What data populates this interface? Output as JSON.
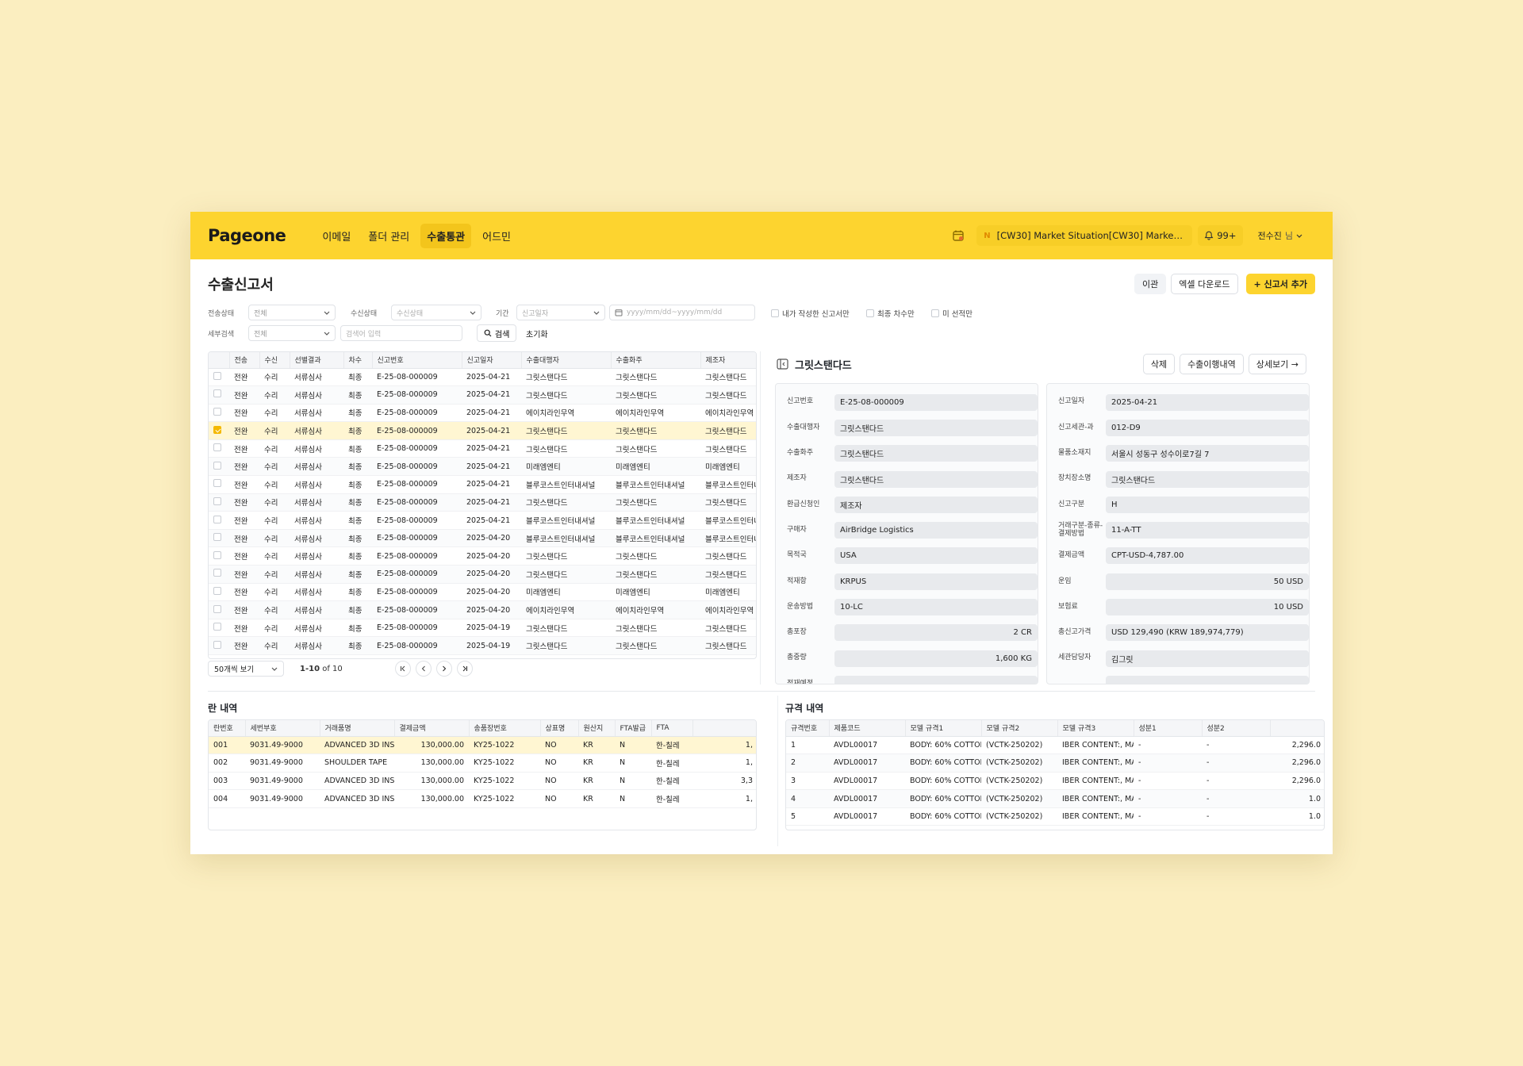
{
  "app": {
    "logo": "Pageone"
  },
  "nav": [
    "이메일",
    "폴더 관리",
    "수출통관",
    "어드민"
  ],
  "nav_active": 2,
  "topbar": {
    "notice_badge": "N",
    "notice_text": "[CW30] Market Situation[CW30] Market Sit...",
    "bell_count": "99+",
    "user_name": "전수진",
    "user_suffix": "님"
  },
  "page": {
    "title": "수출신고서"
  },
  "actions": {
    "transfer": "이관",
    "excel": "엑셀 다운로드",
    "add": "+ 신고서 추가"
  },
  "filters": {
    "send_status_label": "전송상태",
    "send_status_value": "전체",
    "recv_status_label": "수신상태",
    "recv_status_placeholder": "수신상태",
    "period_label": "기간",
    "period_type_placeholder": "신고일자",
    "date_placeholder": "yyyy/mm/dd~yyyy/mm/dd",
    "cb_mine": "내가 작성한 신고서만",
    "cb_final": "최종 차수만",
    "cb_unselected": "미 선적만",
    "detail_label": "세부검색",
    "detail_value": "전체",
    "keyword_placeholder": "검색어 입력",
    "search_btn": "검색",
    "reset_btn": "초기화"
  },
  "list": {
    "columns": [
      "",
      "전송",
      "수신",
      "선별결과",
      "차수",
      "신고번호",
      "신고일자",
      "수출대행자",
      "수출화주",
      "제조자"
    ],
    "selected_row": 3,
    "rows": [
      [
        "전완",
        "수리",
        "서류심사",
        "최종",
        "E-25-08-000009",
        "2025-04-21",
        "그릿스탠다드",
        "그릿스탠다드",
        "그릿스탠다드"
      ],
      [
        "전완",
        "수리",
        "서류심사",
        "최종",
        "E-25-08-000009",
        "2025-04-21",
        "그릿스탠다드",
        "그릿스탠다드",
        "그릿스탠다드"
      ],
      [
        "전완",
        "수리",
        "서류심사",
        "최종",
        "E-25-08-000009",
        "2025-04-21",
        "에이치라인무역",
        "에이치라인무역",
        "에이치라인무역"
      ],
      [
        "전완",
        "수리",
        "서류심사",
        "최종",
        "E-25-08-000009",
        "2025-04-21",
        "그릿스탠다드",
        "그릿스탠다드",
        "그릿스탠다드"
      ],
      [
        "전완",
        "수리",
        "서류심사",
        "최종",
        "E-25-08-000009",
        "2025-04-21",
        "그릿스탠다드",
        "그릿스탠다드",
        "그릿스탠다드"
      ],
      [
        "전완",
        "수리",
        "서류심사",
        "최종",
        "E-25-08-000009",
        "2025-04-21",
        "미래엠엔티",
        "미래엠엔티",
        "미래엠엔티"
      ],
      [
        "전완",
        "수리",
        "서류심사",
        "최종",
        "E-25-08-000009",
        "2025-04-21",
        "블루코스트인터내셔널",
        "블루코스트인터내셔널",
        "블루코스트인터내셔널"
      ],
      [
        "전완",
        "수리",
        "서류심사",
        "최종",
        "E-25-08-000009",
        "2025-04-21",
        "그릿스탠다드",
        "그릿스탠다드",
        "그릿스탠다드"
      ],
      [
        "전완",
        "수리",
        "서류심사",
        "최종",
        "E-25-08-000009",
        "2025-04-21",
        "블루코스트인터내셔널",
        "블루코스트인터내셔널",
        "블루코스트인터내셔널"
      ],
      [
        "전완",
        "수리",
        "서류심사",
        "최종",
        "E-25-08-000009",
        "2025-04-20",
        "블루코스트인터내셔널",
        "블루코스트인터내셔널",
        "블루코스트인터내셔널"
      ],
      [
        "전완",
        "수리",
        "서류심사",
        "최종",
        "E-25-08-000009",
        "2025-04-20",
        "그릿스탠다드",
        "그릿스탠다드",
        "그릿스탠다드"
      ],
      [
        "전완",
        "수리",
        "서류심사",
        "최종",
        "E-25-08-000009",
        "2025-04-20",
        "그릿스탠다드",
        "그릿스탠다드",
        "그릿스탠다드"
      ],
      [
        "전완",
        "수리",
        "서류심사",
        "최종",
        "E-25-08-000009",
        "2025-04-20",
        "미래엠엔티",
        "미래엠엔티",
        "미래엠엔티"
      ],
      [
        "전완",
        "수리",
        "서류심사",
        "최종",
        "E-25-08-000009",
        "2025-04-20",
        "에이치라인무역",
        "에이치라인무역",
        "에이치라인무역"
      ],
      [
        "전완",
        "수리",
        "서류심사",
        "최종",
        "E-25-08-000009",
        "2025-04-19",
        "그릿스탠다드",
        "그릿스탠다드",
        "그릿스탠다드"
      ],
      [
        "전완",
        "수리",
        "서류심사",
        "최종",
        "E-25-08-000009",
        "2025-04-19",
        "그릿스탠다드",
        "그릿스탠다드",
        "그릿스탠다드"
      ]
    ]
  },
  "pager": {
    "page_size": "50개씩 보기",
    "range": "1-10",
    "of": "of 10"
  },
  "detail": {
    "title": "그릿스탠다드",
    "delete": "삭제",
    "history": "수출이행내역",
    "view": "상세보기 →",
    "left": [
      {
        "label": "신고번호",
        "value": "E-25-08-000009",
        "align": "l"
      },
      {
        "label": "수출대행자",
        "value": "그릿스탠다드",
        "align": "l"
      },
      {
        "label": "수출화주",
        "value": "그릿스탠다드",
        "align": "l"
      },
      {
        "label": "제조자",
        "value": "그릿스탠다드",
        "align": "l"
      },
      {
        "label": "환급신청인",
        "value": "제조자",
        "align": "l"
      },
      {
        "label": "구매자",
        "value": "AirBridge Logistics",
        "align": "l"
      },
      {
        "label": "목적국",
        "value": "USA",
        "align": "l"
      },
      {
        "label": "적재항",
        "value": "KRPUS",
        "align": "l"
      },
      {
        "label": "운송방법",
        "value": "10-LC",
        "align": "l"
      },
      {
        "label": "총포장",
        "value": "2 CR",
        "align": "r"
      },
      {
        "label": "총중량",
        "value": "1,600 KG",
        "align": "r"
      },
      {
        "label": "적재예정",
        "value": "",
        "align": "l"
      }
    ],
    "right": [
      {
        "label": "신고일자",
        "value": "2025-04-21",
        "align": "l"
      },
      {
        "label": "신고세관-과",
        "value": "012-D9",
        "align": "l"
      },
      {
        "label": "물품소재지",
        "value": "서울시 성동구 성수이로7길 7",
        "align": "l"
      },
      {
        "label": "장치장소명",
        "value": "그릿스탠다드",
        "align": "l"
      },
      {
        "label": "신고구분",
        "value": "H",
        "align": "l"
      },
      {
        "label": "거래구분-종류-결제방법",
        "value": "11-A-TT",
        "align": "l"
      },
      {
        "label": "결제금액",
        "value": "CPT-USD-4,787.00",
        "align": "l"
      },
      {
        "label": "운임",
        "value": "50 USD",
        "align": "r"
      },
      {
        "label": "보험료",
        "value": "10 USD",
        "align": "r"
      },
      {
        "label": "총신고가격",
        "value": "USD 129,490 (KRW 189,974,779)",
        "align": "l"
      },
      {
        "label": "세관담당자",
        "value": "김그릿",
        "align": "l"
      },
      {
        "label": "",
        "value": "",
        "align": "r"
      }
    ]
  },
  "lines": {
    "title": "란 내역",
    "columns": [
      "란번호",
      "세번부호",
      "거래품명",
      "결제금액",
      "송품장번호",
      "상표명",
      "원산지",
      "FTA발급",
      "FTA",
      ""
    ],
    "selected_row": 0,
    "rows": [
      [
        "001",
        "9031.49-9000",
        "ADVANCED 3D INSP",
        "130,000.00",
        "KY25-1022",
        "NO",
        "KR",
        "N",
        "한-칠레",
        "1,"
      ],
      [
        "002",
        "9031.49-9000",
        "SHOULDER TAPE",
        "130,000.00",
        "KY25-1022",
        "NO",
        "KR",
        "N",
        "한-칠레",
        "1,"
      ],
      [
        "003",
        "9031.49-9000",
        "ADVANCED 3D INSP",
        "130,000.00",
        "KY25-1022",
        "NO",
        "KR",
        "N",
        "한-칠레",
        "3,3"
      ],
      [
        "004",
        "9031.49-9000",
        "ADVANCED 3D INSP",
        "130,000.00",
        "KY25-1022",
        "NO",
        "KR",
        "N",
        "한-칠레",
        "1,"
      ]
    ]
  },
  "specs": {
    "title": "규격 내역",
    "columns": [
      "규격번호",
      "제품코드",
      "모델 규격1",
      "모델 규격2",
      "모델 규격3",
      "성분1",
      "성분2",
      ""
    ],
    "rows": [
      [
        "1",
        "AVDL00017",
        "BODY: 60% COTTON",
        "(VCTK-250202)",
        "IBER CONTENT:, MA",
        "-",
        "-",
        "2,296.0"
      ],
      [
        "2",
        "AVDL00017",
        "BODY: 60% COTTON",
        "(VCTK-250202)",
        "IBER CONTENT:, MA",
        "-",
        "-",
        "2,296.0"
      ],
      [
        "3",
        "AVDL00017",
        "BODY: 60% COTTON",
        "(VCTK-250202)",
        "IBER CONTENT:, MA",
        "-",
        "-",
        "2,296.0"
      ],
      [
        "4",
        "AVDL00017",
        "BODY: 60% COTTON",
        "(VCTK-250202)",
        "IBER CONTENT:, MA",
        "-",
        "-",
        "1.0"
      ],
      [
        "5",
        "AVDL00017",
        "BODY: 60% COTTON",
        "(VCTK-250202)",
        "IBER CONTENT:, MA",
        "-",
        "-",
        "1.0"
      ]
    ]
  }
}
